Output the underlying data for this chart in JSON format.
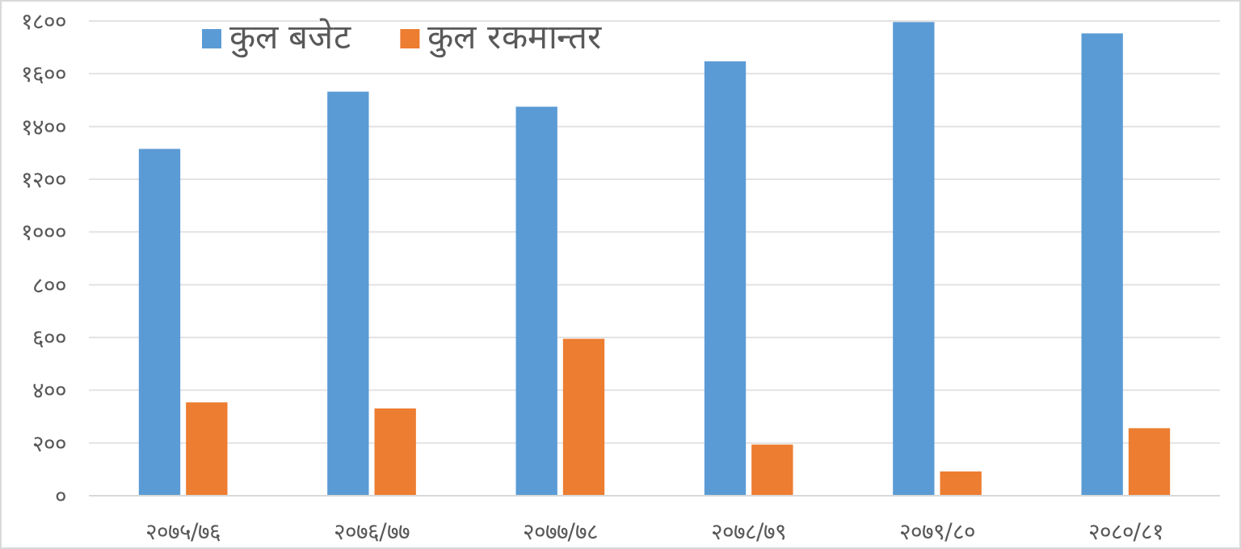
{
  "chart_data": {
    "type": "bar",
    "categories": [
      "२०७५/७६",
      "२०७६/७७",
      "२०७७/७८",
      "२०७८/७९",
      "२०७९/८०",
      "२०८०/८१"
    ],
    "series": [
      {
        "name": "कुल बजेट",
        "color": "#5b9bd5",
        "values": [
          1315,
          1532,
          1475,
          1647,
          1796,
          1753
        ]
      },
      {
        "name": "कुल रकमान्तर",
        "color": "#ed7d31",
        "values": [
          354,
          331,
          595,
          194,
          92,
          256
        ]
      }
    ],
    "ylim": [
      0,
      1800
    ],
    "yticks": [
      {
        "value": 0,
        "label": "०"
      },
      {
        "value": 200,
        "label": "२००"
      },
      {
        "value": 400,
        "label": "४००"
      },
      {
        "value": 600,
        "label": "६००"
      },
      {
        "value": 800,
        "label": "८००"
      },
      {
        "value": 1000,
        "label": "१०००"
      },
      {
        "value": 1200,
        "label": "१२००"
      },
      {
        "value": 1400,
        "label": "१४००"
      },
      {
        "value": 1600,
        "label": "१६००"
      },
      {
        "value": 1800,
        "label": "१८००"
      }
    ],
    "grid": "y",
    "legend": "top"
  }
}
